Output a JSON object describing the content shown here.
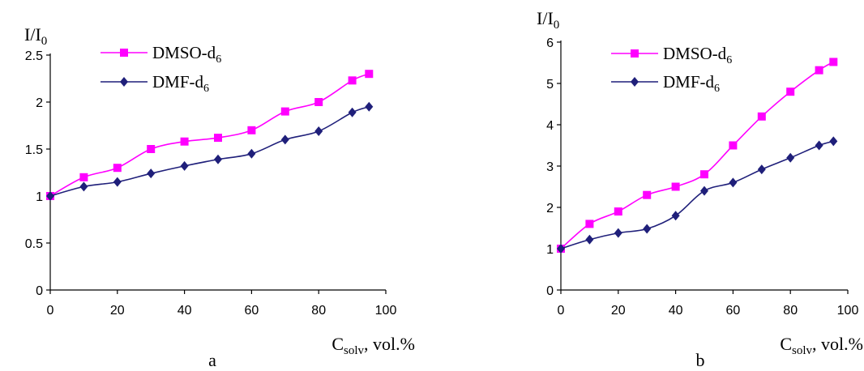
{
  "chart_data": [
    {
      "type": "line",
      "panel_label": "a",
      "ylabel_main": "I/I",
      "ylabel_sub": "0",
      "xlabel_main": "C",
      "xlabel_sub": "solv",
      "xlabel_rest": ", vol.%",
      "xlim": [
        0,
        100
      ],
      "ylim": [
        0,
        2.5
      ],
      "xticks": [
        "0",
        "20",
        "40",
        "60",
        "80",
        "100"
      ],
      "yticks": [
        "0",
        "0.5",
        "1",
        "1.5",
        "2",
        "2.5"
      ],
      "legend_position": "top-left",
      "series": [
        {
          "name_main": "DMSO-d",
          "name_sub": "6",
          "color": "#ff00ff",
          "marker": "square",
          "x": [
            0,
            10,
            20,
            30,
            40,
            50,
            60,
            70,
            80,
            90,
            95
          ],
          "y": [
            1.0,
            1.2,
            1.3,
            1.5,
            1.58,
            1.62,
            1.7,
            1.9,
            2.0,
            2.23,
            2.3
          ]
        },
        {
          "name_main": "DMF-d",
          "name_sub": "6",
          "color": "#1f1f7a",
          "marker": "diamond",
          "x": [
            0,
            10,
            20,
            30,
            40,
            50,
            60,
            70,
            80,
            90,
            95
          ],
          "y": [
            1.0,
            1.1,
            1.15,
            1.24,
            1.32,
            1.39,
            1.45,
            1.6,
            1.69,
            1.89,
            1.95
          ]
        }
      ]
    },
    {
      "type": "line",
      "panel_label": "b",
      "ylabel_main": "I/I",
      "ylabel_sub": "0",
      "xlabel_main": "C",
      "xlabel_sub": "solv",
      "xlabel_rest": ", vol.%",
      "xlim": [
        0,
        100
      ],
      "ylim": [
        0,
        6
      ],
      "xticks": [
        "0",
        "20",
        "40",
        "60",
        "80",
        "100"
      ],
      "yticks": [
        "0",
        "1",
        "2",
        "3",
        "4",
        "5",
        "6"
      ],
      "legend_position": "top-left",
      "series": [
        {
          "name_main": "DMSO-d",
          "name_sub": "6",
          "color": "#ff00ff",
          "marker": "square",
          "x": [
            0,
            10,
            20,
            30,
            40,
            50,
            60,
            70,
            80,
            90,
            95
          ],
          "y": [
            1.0,
            1.6,
            1.9,
            2.3,
            2.5,
            2.8,
            3.5,
            4.2,
            4.8,
            5.32,
            5.52
          ]
        },
        {
          "name_main": "DMF-d",
          "name_sub": "6",
          "color": "#1f1f7a",
          "marker": "diamond",
          "x": [
            0,
            10,
            20,
            30,
            40,
            50,
            60,
            70,
            80,
            90,
            95
          ],
          "y": [
            1.0,
            1.22,
            1.38,
            1.48,
            1.8,
            2.4,
            2.6,
            2.92,
            3.2,
            3.5,
            3.6
          ]
        }
      ]
    }
  ]
}
